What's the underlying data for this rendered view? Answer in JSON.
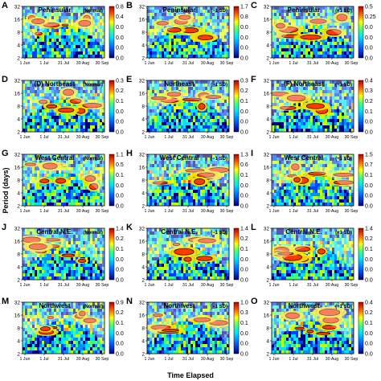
{
  "figure": {
    "ylabel": "Period (days)",
    "xlabel": "Time Elapsed"
  },
  "chart_data": [
    {
      "type": "heatmap",
      "letter": "A",
      "title": "Peninsular",
      "condition": "(Normal)",
      "ylabel": "",
      "yticks": [
        2,
        4,
        8,
        16,
        32
      ],
      "xticks": [
        "1 Jun",
        "1 Jul",
        "31 Jul",
        "30 Aug",
        "30 Sep"
      ],
      "colorbar_ticks": [
        "0.0",
        "0.0",
        "0.0",
        "0.0",
        "0.4",
        "0.8"
      ],
      "seed": 11
    },
    {
      "type": "heatmap",
      "letter": "B",
      "title": "Peninsular",
      "condition": "(−1 SD)",
      "ylabel": "",
      "yticks": [
        2,
        4,
        8,
        16,
        32
      ],
      "xticks": [
        "1 Jun",
        "1 Jul",
        "31 Jul",
        "30 Aug",
        "30 Sep"
      ],
      "colorbar_ticks": [
        "0.0",
        "0.0",
        "0.0",
        "0.0",
        "0.8",
        "1.7"
      ],
      "seed": 23
    },
    {
      "type": "heatmap",
      "letter": "C",
      "title": "Peninsular",
      "condition": "(+1 SD)",
      "ylabel": "",
      "yticks": [
        2,
        4,
        8,
        16,
        32
      ],
      "xticks": [
        "1 Jun",
        "1 Jul",
        "31 Jul",
        "30 Aug",
        "30 Sep"
      ],
      "colorbar_ticks": [
        "0.0",
        "0.0",
        "0.0",
        "0.0",
        "0.25",
        "0.5"
      ],
      "seed": 37
    },
    {
      "type": "heatmap",
      "letter": "D",
      "title": "(D)  Northeast",
      "condition": "(Normal)",
      "ylabel": "",
      "yticks": [
        2,
        4,
        8,
        16,
        32
      ],
      "xticks": [
        "1 Jun",
        "1 Jul",
        "31 Jul",
        "30 Aug",
        "30 Sep"
      ],
      "colorbar_ticks": [
        "0.0",
        "0.0",
        "0.0",
        "0.1",
        "0.2",
        "0.3"
      ],
      "seed": 41
    },
    {
      "type": "heatmap",
      "letter": "E",
      "title": "Northeast",
      "condition": "(−1 SD)",
      "ylabel": "",
      "yticks": [
        2,
        4,
        8,
        16,
        32
      ],
      "xticks": [
        "1 Jun",
        "1 Jul",
        "31 Jul",
        "30 Aug",
        "30 Sep"
      ],
      "colorbar_ticks": [
        "0.0",
        "0.0",
        "0.0",
        "0.1",
        "0.2",
        "0.3"
      ],
      "seed": 53
    },
    {
      "type": "heatmap",
      "letter": "F",
      "title": "(F)  Northeast",
      "condition": "(+1 SD)",
      "ylabel": "",
      "yticks": [
        2,
        4,
        8,
        16,
        32
      ],
      "xticks": [
        "1 Jun",
        "1 Jul",
        "31 Jul",
        "30 Aug",
        "30 Sep"
      ],
      "colorbar_ticks": [
        "0.0",
        "0.0",
        "0.1",
        "0.2",
        "0.3",
        "0.4"
      ],
      "seed": 67
    },
    {
      "type": "heatmap",
      "letter": "G",
      "title": "West Central",
      "condition": "(Normal)",
      "ylabel": "Period (days)",
      "yticks": [
        2,
        4,
        8,
        16,
        32
      ],
      "xticks": [
        "1 Jun",
        "1 Jul",
        "31 Jul",
        "30 Aug",
        "30 Sep"
      ],
      "colorbar_ticks": [
        "0.0",
        "0.0",
        "0.0",
        "0.1",
        "0.5",
        "1.1"
      ],
      "seed": 71
    },
    {
      "type": "heatmap",
      "letter": "H",
      "title": "West Central",
      "condition": "(−1 SD)",
      "ylabel": "",
      "yticks": [
        2,
        4,
        8,
        16,
        32
      ],
      "xticks": [
        "1 Jun",
        "1 Jul",
        "31 Jul",
        "30 Aug",
        "30 Sep"
      ],
      "colorbar_ticks": [
        "0.0",
        "0.0",
        "0.0",
        "0.1",
        "0.6",
        "1.3"
      ],
      "seed": 83
    },
    {
      "type": "heatmap",
      "letter": "I",
      "title": "West Central",
      "condition": "(+1 SD)",
      "ylabel": "",
      "yticks": [
        2,
        4,
        8,
        16,
        32
      ],
      "xticks": [
        "1 Jun",
        "1 Jul",
        "31 Jul",
        "30 Aug",
        "30 Sep"
      ],
      "colorbar_ticks": [
        "0.0",
        "0.0",
        "0.0",
        "0.1",
        "0.7",
        "1.5"
      ],
      "seed": 97
    },
    {
      "type": "heatmap",
      "letter": "J",
      "title": "Central N.E.",
      "condition": "(Normal)",
      "ylabel": "",
      "yticks": [
        2,
        4,
        8,
        16,
        32
      ],
      "xticks": [
        "1 Jun",
        "1 Jul",
        "31 Jul",
        "30 Aug",
        "30 Sep"
      ],
      "colorbar_ticks": [
        "0.0",
        "0.0",
        "0.0",
        "0.1",
        "0.2",
        "1.4"
      ],
      "seed": 101
    },
    {
      "type": "heatmap",
      "letter": "K",
      "title": "Central N.E.",
      "condition": "(−1 SD)",
      "ylabel": "",
      "yticks": [
        2,
        4,
        8,
        16,
        32
      ],
      "xticks": [
        "1 Jun",
        "1 Jul",
        "31 Jul",
        "30 Aug",
        "30 Sep"
      ],
      "colorbar_ticks": [
        "0.0",
        "0.0",
        "0.0",
        "0.1",
        "0.2",
        "1.4"
      ],
      "seed": 113
    },
    {
      "type": "heatmap",
      "letter": "L",
      "title": "Central N.E.",
      "condition": "(+1 SD)",
      "ylabel": "",
      "yticks": [
        2,
        4,
        8,
        16,
        32
      ],
      "xticks": [
        "1 Jun",
        "1 Jul",
        "31 Jul",
        "30 Aug",
        "30 Sep"
      ],
      "colorbar_ticks": [
        "0.0",
        "0.0",
        "0.0",
        "0.1",
        "0.2",
        "1.4"
      ],
      "seed": 127
    },
    {
      "type": "heatmap",
      "letter": "M",
      "title": "Northwest",
      "condition": "(Normal)",
      "ylabel": "",
      "yticks": [
        2,
        4,
        8,
        16,
        32
      ],
      "xticks": [
        "1 Jun",
        "1 Jul",
        "31 Jul",
        "30 Aug",
        "30 Sep"
      ],
      "colorbar_ticks": [
        "0.0",
        "0.0",
        "0.0",
        "0.1",
        "0.2",
        "0.9"
      ],
      "seed": 131
    },
    {
      "type": "heatmap",
      "letter": "N",
      "title": "Northwest",
      "condition": "(−1 SD)",
      "ylabel": "",
      "yticks": [
        2,
        4,
        8,
        16,
        32
      ],
      "xticks": [
        "1 Jun",
        "1 Jul",
        "31 Jul",
        "30 Aug",
        "30 Sep"
      ],
      "colorbar_ticks": [
        "0.0",
        "0.0",
        "0.0",
        "0.1",
        "0.3",
        "1.0"
      ],
      "seed": 149
    },
    {
      "type": "heatmap",
      "letter": "O",
      "title": "Northwest",
      "condition": "(+1 SD)",
      "ylabel": "",
      "yticks": [
        2,
        4,
        8,
        16,
        32
      ],
      "xticks": [
        "1 Jun",
        "1 Jul",
        "31 Jul",
        "30 Aug",
        "30 Sep"
      ],
      "colorbar_ticks": [
        "0.0",
        "0.0",
        "0.0",
        "0.1",
        "0.2",
        "0.4"
      ],
      "seed": 157
    }
  ]
}
